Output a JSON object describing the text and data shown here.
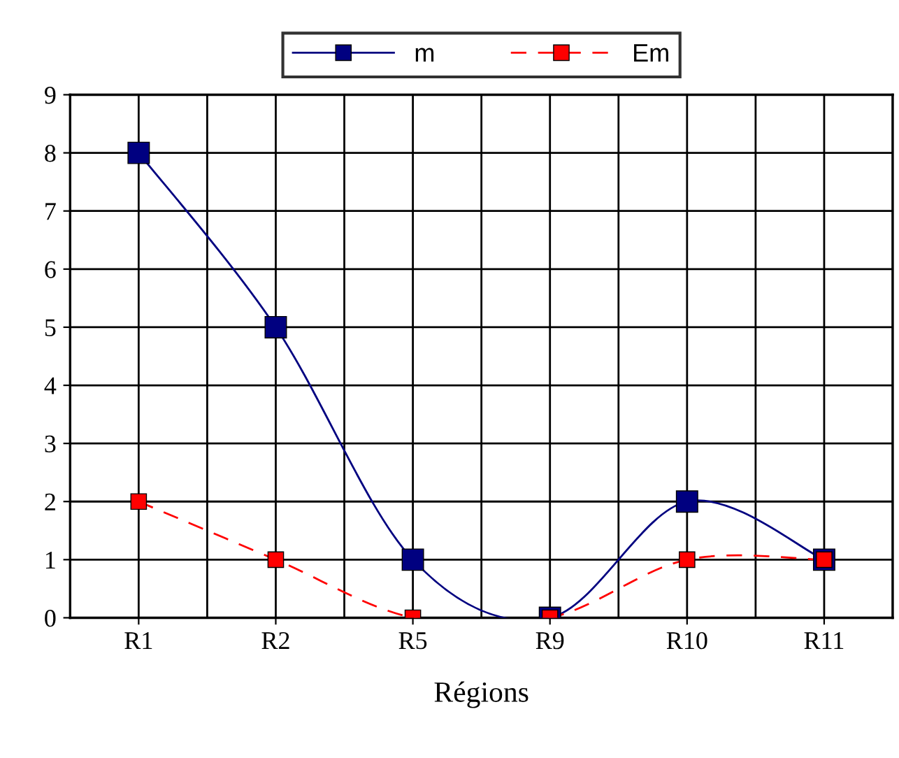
{
  "chart_data": {
    "type": "line",
    "xlabel": "Régions",
    "categories": [
      "R1",
      "R2",
      "R5",
      "R9",
      "R10",
      "R11"
    ],
    "series": [
      {
        "name": "m",
        "color": "#000080",
        "values": [
          8,
          5,
          1,
          0,
          2,
          1
        ],
        "line_style": "solid"
      },
      {
        "name": "Em",
        "color": "#ff0000",
        "values": [
          2,
          1,
          0,
          0,
          1,
          1
        ],
        "line_style": "dashed"
      }
    ],
    "ylim": [
      0,
      9
    ],
    "yticks": [
      0,
      1,
      2,
      3,
      4,
      5,
      6,
      7,
      8,
      9
    ],
    "grid": true,
    "legend": "top",
    "marker": "square"
  }
}
